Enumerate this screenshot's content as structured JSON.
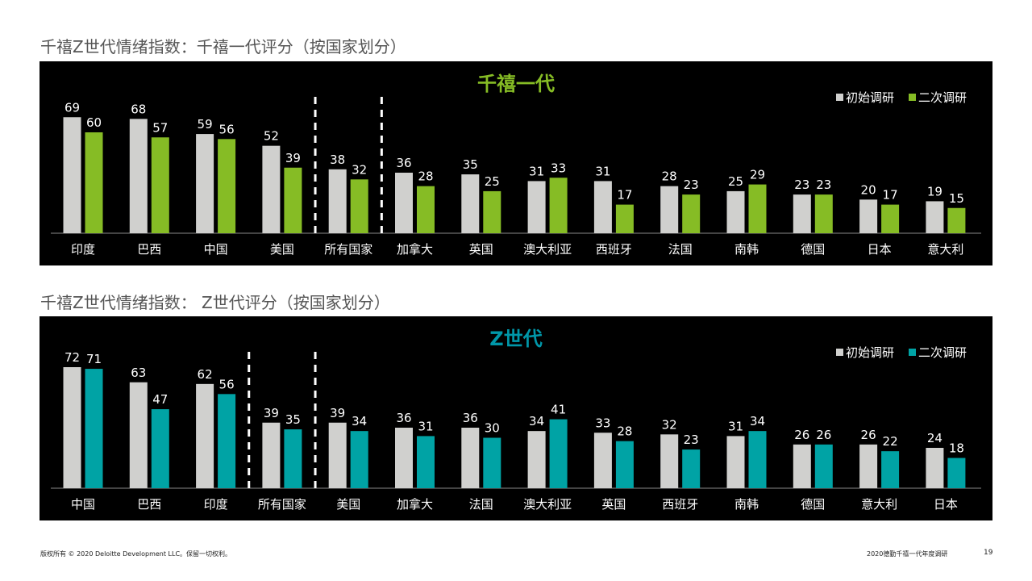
{
  "footer": {
    "copyright": "版权所有 © 2020 Deloitte Development LLC。保留一切权利。",
    "report": "2020德勤千禧一代年度调研",
    "page": "19"
  },
  "chart_data": [
    {
      "type": "bar",
      "section_title": "千禧Z世代情绪指数：千禧一代评分（按国家划分）",
      "title": "千禧一代",
      "title_color": "#86bc25",
      "categories": [
        "印度",
        "巴西",
        "中国",
        "美国",
        "所有国家",
        "加拿大",
        "英国",
        "澳大利亚",
        "西班牙",
        "法国",
        "南韩",
        "德国",
        "日本",
        "意大利"
      ],
      "series": [
        {
          "name": "初始调研",
          "color": "#d0d0ce",
          "values": [
            69,
            68,
            59,
            52,
            38,
            36,
            35,
            31,
            31,
            28,
            25,
            23,
            20,
            19
          ]
        },
        {
          "name": "二次调研",
          "color": "#86bc25",
          "values": [
            60,
            57,
            56,
            39,
            32,
            28,
            25,
            33,
            17,
            23,
            29,
            23,
            17,
            15
          ]
        }
      ],
      "dashed_separators_after": [
        "美国",
        "所有国家"
      ],
      "legend_position": "top-right",
      "ylim": [
        0,
        80
      ]
    },
    {
      "type": "bar",
      "section_title": "千禧Z世代情绪指数： Z世代评分（按国家划分）",
      "title": "Z世代",
      "title_color": "#0097a9",
      "categories": [
        "中国",
        "巴西",
        "印度",
        "所有国家",
        "美国",
        "加拿大",
        "法国",
        "澳大利亚",
        "英国",
        "西班牙",
        "南韩",
        "德国",
        "意大利",
        "日本"
      ],
      "series": [
        {
          "name": "初始调研",
          "color": "#d0d0ce",
          "values": [
            72,
            63,
            62,
            39,
            39,
            36,
            36,
            34,
            33,
            32,
            31,
            26,
            26,
            24
          ]
        },
        {
          "name": "二次调研",
          "color": "#00a3a5",
          "values": [
            71,
            47,
            56,
            35,
            34,
            31,
            30,
            41,
            28,
            23,
            34,
            26,
            22,
            18
          ]
        }
      ],
      "dashed_separators_after": [
        "印度",
        "所有国家"
      ],
      "legend_position": "top-right",
      "ylim": [
        0,
        80
      ]
    }
  ]
}
